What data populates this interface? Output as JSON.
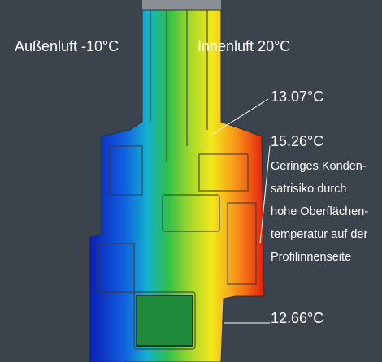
{
  "labels": {
    "outside": "Außenluft -10°C",
    "inside": "Innenluft 20°C"
  },
  "annotations": [
    {
      "label": "13.07°C"
    },
    {
      "label": "15.26°C",
      "note": [
        "Geringes Konden-",
        "satrisiko durch",
        "hohe Oberflächen-",
        "temperatur auf der",
        "Profilinnenseite"
      ]
    },
    {
      "label": "12.66°C"
    }
  ]
}
